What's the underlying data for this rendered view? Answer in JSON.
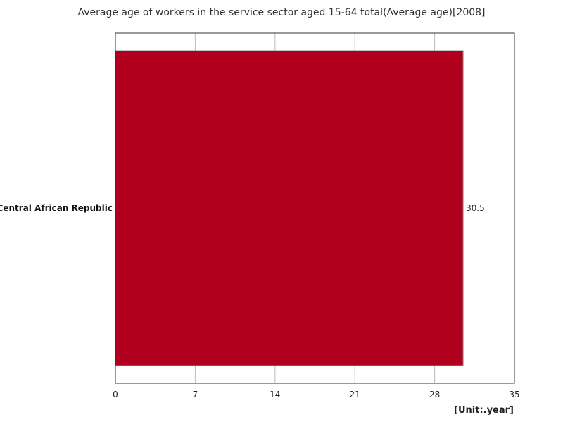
{
  "chart_data": {
    "type": "bar",
    "orientation": "horizontal",
    "title": "Average age of workers in the service sector aged 15-64 total(Average age)[2008]",
    "categories": [
      "Central African Republic"
    ],
    "series": [
      {
        "name": "Average age",
        "values": [
          30.5
        ],
        "color": "#b0001e"
      }
    ],
    "value_labels": [
      "30.5"
    ],
    "xlim": [
      0,
      35
    ],
    "xticks": [
      0,
      7,
      14,
      21,
      28,
      35
    ],
    "grid": true,
    "unit_label": "[Unit:.year]"
  }
}
